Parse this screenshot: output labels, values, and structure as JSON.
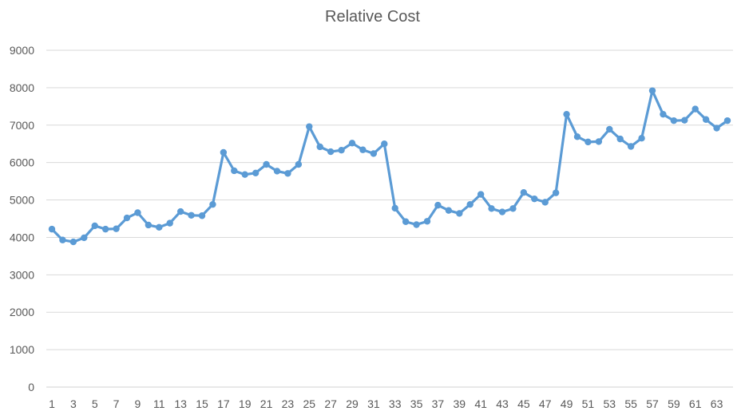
{
  "chart_data": {
    "type": "line",
    "title": "Relative Cost",
    "xlabel": "",
    "ylabel": "",
    "ylim": [
      0,
      9000
    ],
    "yticks": [
      0,
      1000,
      2000,
      3000,
      4000,
      5000,
      6000,
      7000,
      8000,
      9000
    ],
    "xlim": [
      1,
      64
    ],
    "xtick_labels": [
      "1",
      "3",
      "5",
      "7",
      "9",
      "11",
      "13",
      "15",
      "17",
      "19",
      "21",
      "23",
      "25",
      "27",
      "29",
      "31",
      "33",
      "35",
      "37",
      "39",
      "41",
      "43",
      "45",
      "47",
      "49",
      "51",
      "53",
      "55",
      "57",
      "59",
      "61",
      "63"
    ],
    "grid": true,
    "legend": "none",
    "series_color": "#5B9BD5",
    "series": [
      {
        "x": [
          1,
          2,
          3,
          4,
          5,
          6,
          7,
          8,
          9,
          10,
          11,
          12,
          13,
          14,
          15,
          16,
          17,
          18,
          19,
          20,
          21,
          22,
          23,
          24,
          25,
          26,
          27,
          28,
          29,
          30,
          31,
          32,
          33,
          34,
          35,
          36,
          37,
          38,
          39,
          40,
          41,
          42,
          43,
          44,
          45,
          46,
          47,
          48,
          49,
          50,
          51,
          52,
          53,
          54,
          55,
          56,
          57,
          58,
          59,
          60,
          61,
          62,
          63,
          64
        ],
        "values": [
          4220,
          3930,
          3880,
          3990,
          4310,
          4220,
          4230,
          4520,
          4660,
          4330,
          4270,
          4380,
          4690,
          4590,
          4580,
          4880,
          6270,
          5780,
          5680,
          5720,
          5950,
          5770,
          5710,
          5950,
          6960,
          6420,
          6290,
          6330,
          6520,
          6340,
          6240,
          6500,
          4780,
          4420,
          4340,
          4430,
          4860,
          4720,
          4640,
          4880,
          5150,
          4770,
          4680,
          4770,
          5200,
          5030,
          4940,
          5190,
          7290,
          6690,
          6550,
          6560,
          6890,
          6630,
          6430,
          6650,
          7920,
          7290,
          7120,
          7130,
          7430,
          7150,
          6920,
          7120
        ]
      }
    ]
  }
}
